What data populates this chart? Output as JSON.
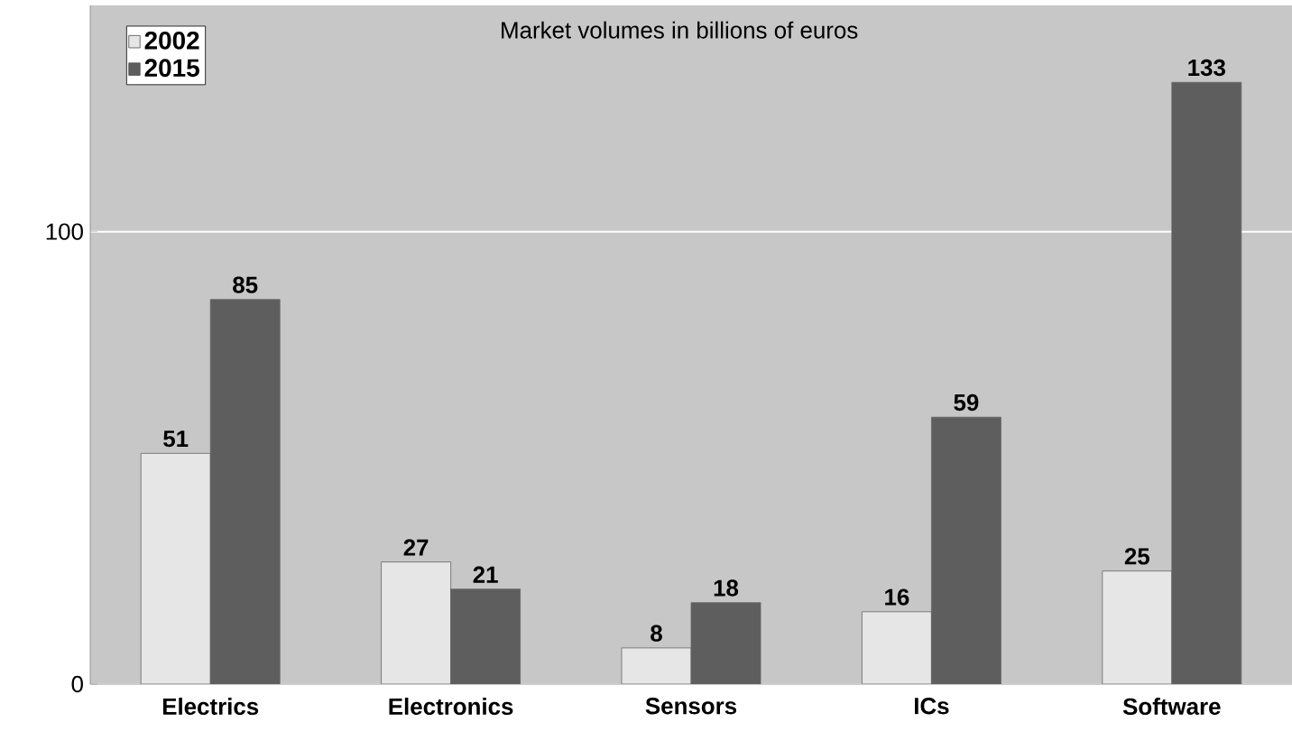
{
  "chart_data": {
    "type": "bar",
    "title": "Market volumes in billions of euros",
    "categories": [
      "Electrics",
      "Electronics",
      "Sensors",
      "ICs",
      "Software"
    ],
    "series": [
      {
        "name": "2002",
        "color": "#e6e6e6",
        "values": [
          51,
          27,
          8,
          16,
          25
        ]
      },
      {
        "name": "2015",
        "color": "#5e5e5e",
        "values": [
          85,
          21,
          18,
          59,
          133
        ]
      }
    ],
    "ylim": [
      0,
      150
    ],
    "yticks": [
      0,
      100
    ],
    "grid": "y",
    "legend": "top left",
    "data_labels": true
  }
}
